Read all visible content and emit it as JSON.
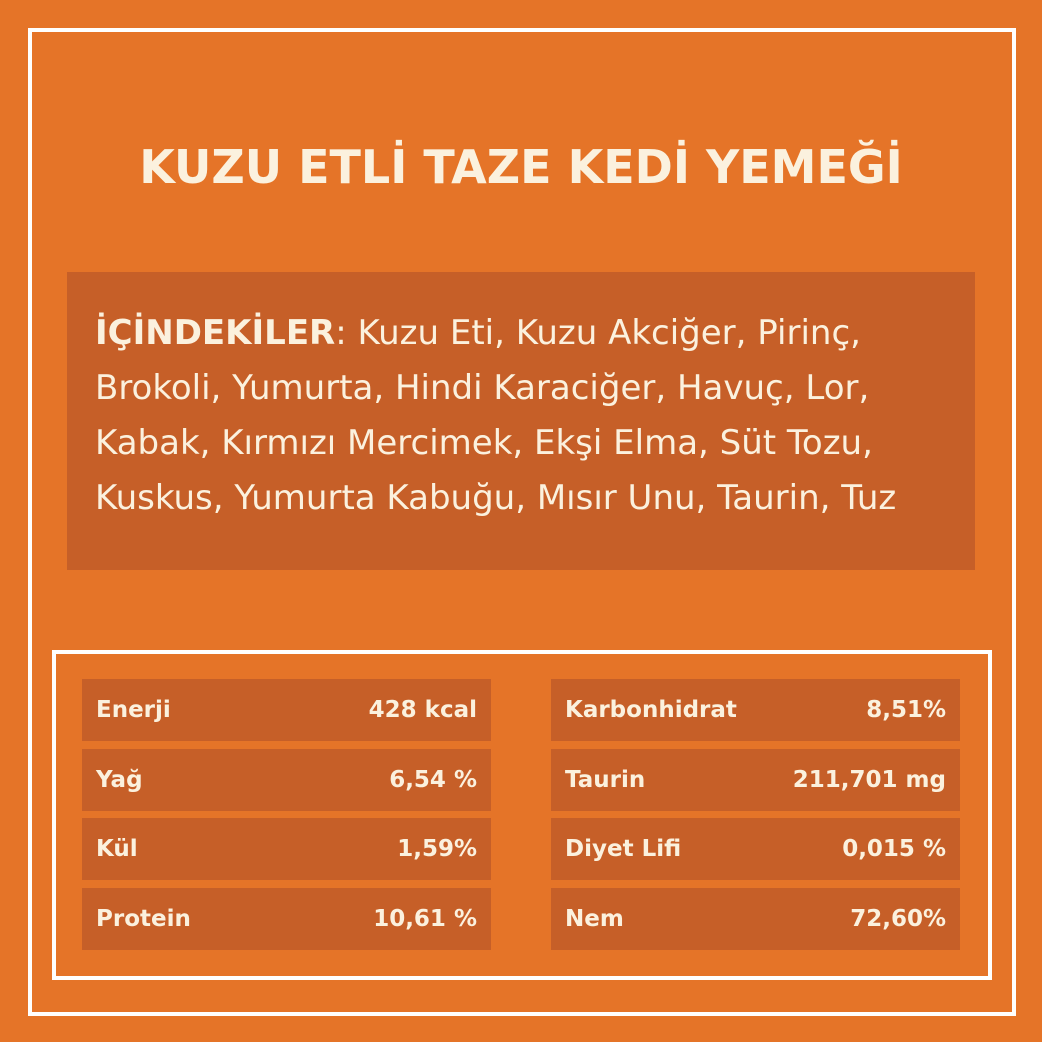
{
  "title": "KUZU ETLİ TAZE KEDİ YEMEĞİ",
  "ingredients": {
    "label": "İÇİNDEKİLER",
    "separator": ":",
    "text": " Kuzu Eti, Kuzu Akciğer, Pirinç, Brokoli, Yumurta, Hindi Karaciğer, Havuç, Lor, Kabak, Kırmızı Mercimek, Ekşi Elma, Süt Tozu, Kuskus, Yumurta Kabuğu, Mısır Unu, Taurin, Tuz"
  },
  "nutrition": {
    "left": [
      {
        "name": "Enerji",
        "value": "428 kcal"
      },
      {
        "name": "Yağ",
        "value": "6,54 %"
      },
      {
        "name": "Kül",
        "value": "1,59%"
      },
      {
        "name": "Protein",
        "value": "10,61 %"
      }
    ],
    "right": [
      {
        "name": "Karbonhidrat",
        "value": "8,51%"
      },
      {
        "name": "Taurin",
        "value": "211,701 mg"
      },
      {
        "name": "Diyet Lifi",
        "value": "0,015 %"
      },
      {
        "name": "Nem",
        "value": "72,60%"
      }
    ]
  },
  "colors": {
    "background": "#E57428",
    "box": "#C65F28",
    "text": "#FBF1DE",
    "border": "#FFFFFF"
  }
}
